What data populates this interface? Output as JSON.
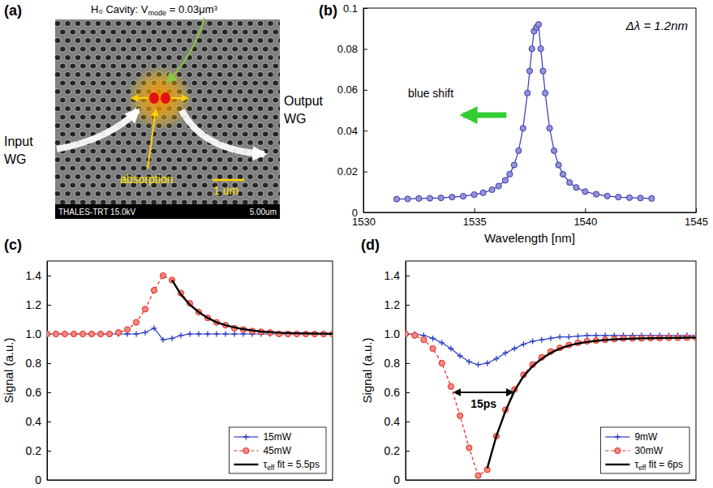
{
  "chart_data": [
    {
      "type": "image",
      "panel": "(a)",
      "title": "H₀ Cavity: Vmode = 0.03μm³",
      "annotations": [
        "Input WG",
        "Output WG",
        "absorption",
        "1 um"
      ],
      "footer": [
        "THALES-TRT 15.0kV",
        "5.00um"
      ]
    },
    {
      "type": "line",
      "panel": "(b)",
      "x_label": "Wavelength [nm]",
      "annotations": [
        "blue shift",
        "Δλ = 1.2nm"
      ],
      "x": [
        1531.5,
        1532,
        1532.5,
        1533,
        1533.5,
        1534,
        1534.5,
        1535,
        1535.4,
        1535.8,
        1536.1,
        1536.4,
        1536.6,
        1536.8,
        1537,
        1537.2,
        1537.4,
        1537.5,
        1537.6,
        1537.7,
        1537.8,
        1537.9,
        1538,
        1538.1,
        1538.2,
        1538.4,
        1538.6,
        1538.8,
        1539,
        1539.3,
        1539.6,
        1540,
        1540.5,
        1541,
        1541.5,
        1542,
        1542.5,
        1543
      ],
      "series": [
        {
          "color": "#3a3ab4",
          "marker": "circle",
          "line_style": "solid",
          "values": [
            0.0065,
            0.0066,
            0.0068,
            0.0069,
            0.0071,
            0.0075,
            0.0079,
            0.0087,
            0.0096,
            0.0111,
            0.0129,
            0.0157,
            0.0187,
            0.0232,
            0.0302,
            0.0412,
            0.0584,
            0.0692,
            0.0801,
            0.0887,
            0.0905,
            0.092,
            0.0801,
            0.0692,
            0.0584,
            0.0412,
            0.0302,
            0.0232,
            0.0187,
            0.0146,
            0.0122,
            0.0102,
            0.0089,
            0.008,
            0.0075,
            0.0072,
            0.007,
            0.0068
          ]
        }
      ],
      "xlim": [
        1530,
        1545
      ],
      "xticks": [
        1530,
        1535,
        1540,
        1545
      ],
      "ylim": [
        0,
        0.1
      ],
      "yticks": [
        0,
        0.02,
        0.04,
        0.06,
        0.08,
        0.1
      ],
      "grid": false
    },
    {
      "type": "line",
      "panel": "(c)",
      "y_label": "Signal (a.u.)",
      "x": [
        0,
        1,
        2,
        3,
        4,
        5,
        6,
        7,
        8,
        9,
        10,
        11,
        12,
        13,
        14,
        15,
        16,
        17,
        18,
        19,
        20,
        21,
        22,
        23,
        24,
        25,
        26,
        27,
        28,
        29,
        30,
        31,
        32
      ],
      "series": [
        {
          "name": "15mW",
          "color": "#2b3cc4",
          "marker": "plus",
          "line_style": "solid",
          "values": [
            1,
            1,
            1,
            1,
            1,
            1,
            1,
            1,
            1,
            1,
            1,
            1.01,
            1.04,
            0.96,
            0.97,
            0.99,
            1,
            1,
            1,
            1,
            1,
            1,
            1,
            1,
            1,
            1,
            1,
            1,
            1,
            1,
            1,
            1,
            1
          ]
        },
        {
          "name": "45mW",
          "color": "#e8261c",
          "marker": "circle",
          "line_style": "dashed",
          "values": [
            1,
            1,
            1,
            1,
            1,
            1,
            1,
            1,
            1.01,
            1.03,
            1.08,
            1.17,
            1.3,
            1.4,
            1.37,
            1.28,
            1.21,
            1.15,
            1.11,
            1.08,
            1.06,
            1.04,
            1.03,
            1.02,
            1.015,
            1.01,
            1,
            1,
            1,
            1,
            1,
            1,
            1
          ]
        },
        {
          "name": "τeff fit = 5.5ps",
          "color": "#000000",
          "marker": "none",
          "line_style": "solid",
          "values": [
            null,
            null,
            null,
            null,
            null,
            null,
            null,
            null,
            null,
            null,
            null,
            null,
            null,
            null,
            1.37,
            1.27,
            1.2,
            1.15,
            1.11,
            1.08,
            1.06,
            1.045,
            1.033,
            1.024,
            1.017,
            1.013,
            1.009,
            1.007,
            1.005,
            1.004,
            1.003,
            1.002,
            1.001
          ]
        }
      ],
      "xlim": [
        0,
        32
      ],
      "ylim": [
        0,
        1.5
      ],
      "yticks": [
        0,
        0.2,
        0.4,
        0.6,
        0.8,
        {
          "value": 1,
          "label": "1.0"
        },
        1.2,
        1.4
      ],
      "tick_labels": "y",
      "legend": "lower right",
      "grid": false
    },
    {
      "type": "line",
      "panel": "(d)",
      "y_label": "Signal (a.u.)",
      "annotations": [
        {
          "text": "15ps",
          "x_start": 5.4,
          "x_end": 11.8,
          "y": 0.6
        }
      ],
      "x": [
        0,
        1,
        2,
        3,
        4,
        5,
        6,
        7,
        8,
        9,
        10,
        11,
        12,
        13,
        14,
        15,
        16,
        17,
        18,
        19,
        20,
        21,
        22,
        23,
        24,
        25,
        26,
        27,
        28,
        29,
        30,
        31,
        32
      ],
      "series": [
        {
          "name": "9mW",
          "color": "#2b3cc4",
          "marker": "plus",
          "line_style": "solid",
          "values": [
            1,
            1,
            0.99,
            0.97,
            0.94,
            0.9,
            0.85,
            0.81,
            0.79,
            0.8,
            0.83,
            0.87,
            0.9,
            0.93,
            0.95,
            0.96,
            0.97,
            0.98,
            0.98,
            0.985,
            0.99,
            0.99,
            0.99,
            0.99,
            0.99,
            0.99,
            0.99,
            0.99,
            0.99,
            0.99,
            0.99,
            0.99,
            0.99
          ]
        },
        {
          "name": "30mW",
          "color": "#e8261c",
          "marker": "circle",
          "line_style": "dashed",
          "values": [
            1,
            0.99,
            0.96,
            0.9,
            0.8,
            0.64,
            0.44,
            0.22,
            0.03,
            0.07,
            0.3,
            0.48,
            0.62,
            0.72,
            0.79,
            0.84,
            0.88,
            0.905,
            0.925,
            0.94,
            0.95,
            0.955,
            0.96,
            0.965,
            0.97,
            0.97,
            0.97,
            0.972,
            0.972,
            0.974,
            0.974,
            0.975,
            0.975
          ]
        },
        {
          "name": "τeff fit = 6ps",
          "color": "#000000",
          "marker": "none",
          "line_style": "solid",
          "values": [
            null,
            null,
            null,
            null,
            null,
            null,
            null,
            null,
            null,
            0.08,
            0.3,
            0.47,
            0.61,
            0.71,
            0.78,
            0.83,
            0.87,
            0.9,
            0.92,
            0.935,
            0.945,
            0.953,
            0.959,
            0.963,
            0.966,
            0.968,
            0.97,
            0.971,
            0.972,
            0.973,
            0.974,
            0.975,
            0.975
          ]
        }
      ],
      "xlim": [
        0,
        32
      ],
      "ylim": [
        0,
        1.5
      ],
      "yticks": [
        0,
        0.2,
        0.4,
        0.6,
        0.8,
        {
          "value": 1,
          "label": "1.0"
        },
        1.2,
        1.4
      ],
      "tick_labels": "y",
      "legend": "lower right",
      "grid": false
    }
  ]
}
